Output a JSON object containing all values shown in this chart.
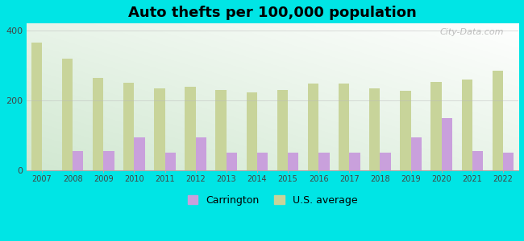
{
  "title": "Auto thefts per 100,000 population",
  "years": [
    2007,
    2008,
    2009,
    2010,
    2011,
    2012,
    2013,
    2014,
    2015,
    2016,
    2017,
    2018,
    2019,
    2020,
    2021,
    2022
  ],
  "carrington": [
    0,
    55,
    55,
    95,
    50,
    95,
    50,
    50,
    50,
    50,
    50,
    50,
    95,
    150,
    55,
    50
  ],
  "us_average": [
    365,
    320,
    265,
    250,
    235,
    240,
    230,
    222,
    230,
    248,
    248,
    235,
    228,
    253,
    260,
    285
  ],
  "carrington_color": "#c9a0dc",
  "us_average_color": "#c8d49a",
  "background_color": "#00e5e5",
  "ylim": [
    0,
    420
  ],
  "yticks": [
    0,
    200,
    400
  ],
  "bar_width": 0.35,
  "watermark": "City-Data.com",
  "legend_carrington": "Carrington",
  "legend_us": "U.S. average",
  "grid_color": "#bbbbbb",
  "plot_bg_color_bottom": "#d0e8c8",
  "plot_bg_color_top": "#f0f8f0"
}
